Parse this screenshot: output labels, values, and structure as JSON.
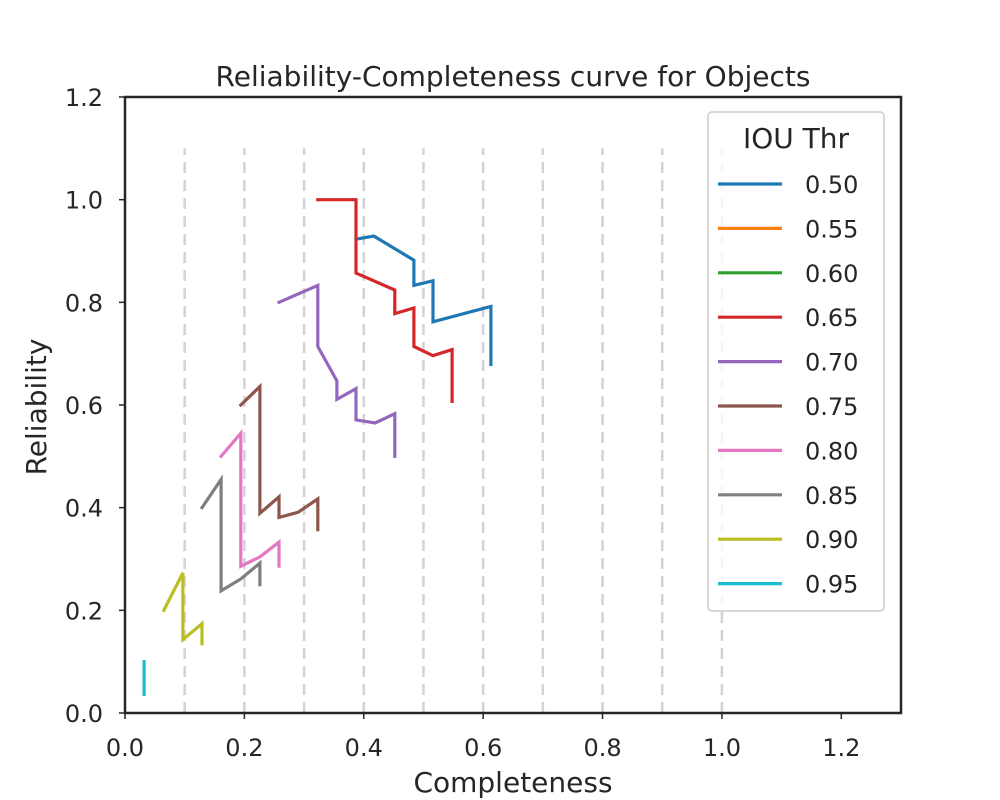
{
  "chart_data": {
    "type": "line",
    "title": "Reliability-Completeness curve for Objects",
    "xlabel": "Completeness",
    "ylabel": "Reliability",
    "xlim": [
      0.0,
      1.3
    ],
    "ylim": [
      0.0,
      1.2
    ],
    "x_ticks": [
      "0.0",
      "0.2",
      "0.4",
      "0.6",
      "0.8",
      "1.0",
      "1.2"
    ],
    "y_ticks": [
      "0.0",
      "0.2",
      "0.4",
      "0.6",
      "0.8",
      "1.0",
      "1.2"
    ],
    "vertical_dashed_lines": {
      "x": [
        0.1,
        0.2,
        0.3,
        0.4,
        0.5,
        0.6,
        0.7,
        0.8,
        0.9,
        1.0
      ],
      "y_range": [
        0.0,
        1.1
      ],
      "color": "#d3d3d3"
    },
    "legend": {
      "title": "IOU Thr",
      "position": "upper-right"
    },
    "series": [
      {
        "name": "0.50",
        "color": "#1f77b4",
        "x": [
          0.387,
          0.417,
          0.484,
          0.484,
          0.516,
          0.516,
          0.613,
          0.613
        ],
        "y": [
          0.923,
          0.929,
          0.882,
          0.833,
          0.842,
          0.762,
          0.792,
          0.679
        ]
      },
      {
        "name": "0.55",
        "color": "#ff7f0e",
        "x": [],
        "y": []
      },
      {
        "name": "0.60",
        "color": "#2ca02c",
        "x": [],
        "y": []
      },
      {
        "name": "0.65",
        "color": "#d62728",
        "x": [
          0.323,
          0.387,
          0.387,
          0.452,
          0.452,
          0.484,
          0.484,
          0.516,
          0.548,
          0.548
        ],
        "y": [
          1.0,
          1.0,
          0.857,
          0.824,
          0.778,
          0.789,
          0.714,
          0.696,
          0.708,
          0.607
        ]
      },
      {
        "name": "0.70",
        "color": "#9467bd",
        "x": [
          0.258,
          0.323,
          0.323,
          0.355,
          0.355,
          0.387,
          0.387,
          0.419,
          0.452,
          0.452
        ],
        "y": [
          0.8,
          0.833,
          0.714,
          0.647,
          0.611,
          0.632,
          0.571,
          0.565,
          0.583,
          0.5
        ]
      },
      {
        "name": "0.75",
        "color": "#8c564b",
        "x": [
          0.194,
          0.226,
          0.226,
          0.258,
          0.258,
          0.29,
          0.323,
          0.323
        ],
        "y": [
          0.6,
          0.636,
          0.389,
          0.421,
          0.381,
          0.391,
          0.417,
          0.357
        ]
      },
      {
        "name": "0.80",
        "color": "#e377c2",
        "x": [
          0.161,
          0.194,
          0.194,
          0.226,
          0.258,
          0.258
        ],
        "y": [
          0.5,
          0.545,
          0.286,
          0.304,
          0.333,
          0.286
        ]
      },
      {
        "name": "0.85",
        "color": "#7f7f7f",
        "x": [
          0.129,
          0.161,
          0.161,
          0.194,
          0.226,
          0.226
        ],
        "y": [
          0.4,
          0.455,
          0.238,
          0.261,
          0.292,
          0.25
        ]
      },
      {
        "name": "0.90",
        "color": "#bcbd22",
        "x": [
          0.065,
          0.097,
          0.097,
          0.129,
          0.129
        ],
        "y": [
          0.2,
          0.273,
          0.143,
          0.174,
          0.135
        ]
      },
      {
        "name": "0.95",
        "color": "#17becf",
        "x": [
          0.032,
          0.032
        ],
        "y": [
          0.1,
          0.036
        ]
      }
    ]
  }
}
